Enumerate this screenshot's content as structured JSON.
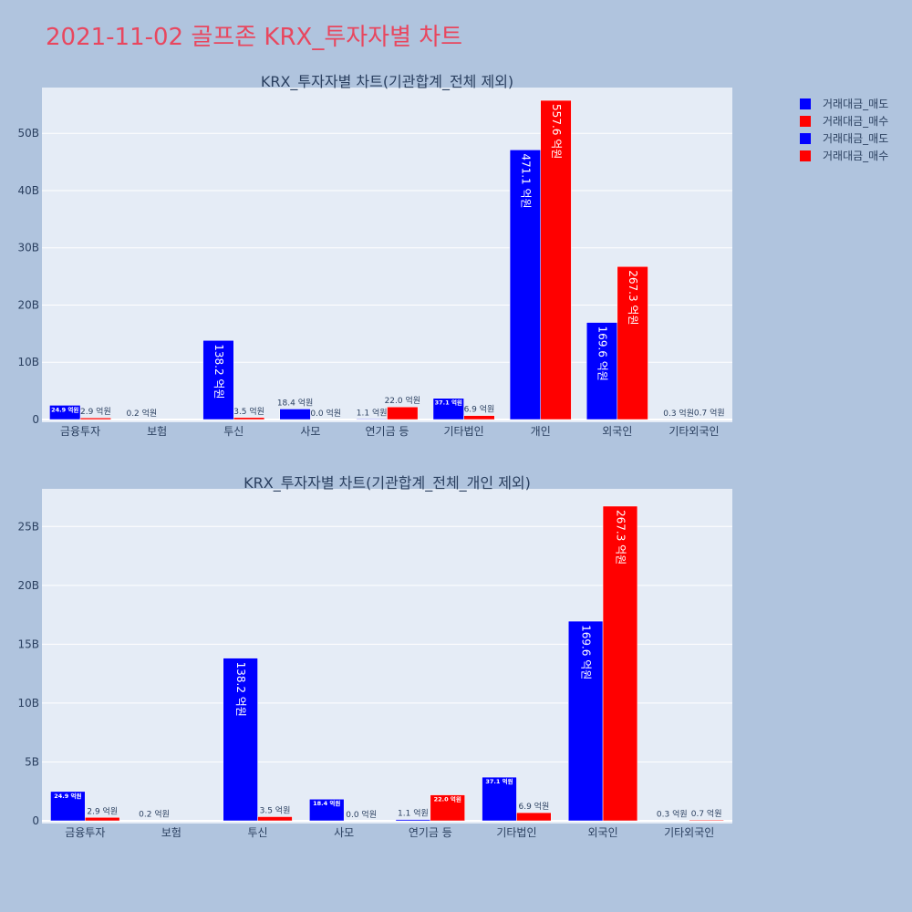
{
  "title": "2021-11-02 골프존 KRX_투자자별 차트",
  "colors": {
    "title": "#e8475f",
    "page_bg": "#b0c4de",
    "plot_bg": "#e5ecf6",
    "text": "#2a3f5f",
    "sell": "#0000ff",
    "buy": "#ff0000"
  },
  "legend": [
    {
      "name": "거래대금_매도",
      "color": "#0000ff"
    },
    {
      "name": "거래대금_매수",
      "color": "#ff0000"
    },
    {
      "name": "거래대금_매도",
      "color": "#0000ff"
    },
    {
      "name": "거래대금_매수",
      "color": "#ff0000"
    }
  ],
  "chart_data": [
    {
      "type": "bar",
      "title": "KRX_투자자별 차트(기관합계_전체 제외)",
      "categories": [
        "금융투자",
        "보험",
        "투신",
        "사모",
        "연기금 등",
        "기타법인",
        "개인",
        "외국인",
        "기타외국인"
      ],
      "ylim": [
        0,
        58
      ],
      "yticks": [
        0,
        10,
        20,
        30,
        40,
        50
      ],
      "ytick_labels": [
        "0",
        "10B",
        "20B",
        "30B",
        "40B",
        "50B"
      ],
      "grid": true,
      "series": [
        {
          "name": "거래대금_매도",
          "color": "#0000ff",
          "values": [
            2.49,
            0.02,
            13.82,
            1.84,
            0.11,
            3.71,
            47.11,
            16.96,
            0.03
          ],
          "labels": [
            "24.9 억원",
            "0.2 억원",
            "138.2 억원",
            "18.4 억원",
            "1.1 억원",
            "37.1 억원",
            "471.1 억원",
            "169.6 억원",
            "0.3 억원"
          ]
        },
        {
          "name": "거래대금_매수",
          "color": "#ff0000",
          "values": [
            0.29,
            0.0,
            0.35,
            0.0,
            2.2,
            0.69,
            55.76,
            26.73,
            0.07
          ],
          "labels": [
            "2.9 억원",
            "",
            "3.5 억원",
            "0.0 억원",
            "22.0 억원",
            "6.9 억원",
            "557.6 억원",
            "267.3 억원",
            "0.7 억원"
          ]
        }
      ]
    },
    {
      "type": "bar",
      "title": "KRX_투자자별 차트(기관합계_전체_개인 제외)",
      "categories": [
        "금융투자",
        "보험",
        "투신",
        "사모",
        "연기금 등",
        "기타법인",
        "외국인",
        "기타외국인"
      ],
      "ylim": [
        0,
        28.2
      ],
      "yticks": [
        0,
        5,
        10,
        15,
        20,
        25
      ],
      "ytick_labels": [
        "0",
        "5B",
        "10B",
        "15B",
        "20B",
        "25B"
      ],
      "grid": true,
      "series": [
        {
          "name": "거래대금_매도",
          "color": "#0000ff",
          "values": [
            2.49,
            0.02,
            13.82,
            1.84,
            0.11,
            3.71,
            16.96,
            0.03
          ],
          "labels": [
            "24.9 억원",
            "0.2 억원",
            "138.2 억원",
            "18.4 억원",
            "1.1 억원",
            "37.1 억원",
            "169.6 억원",
            "0.3 억원"
          ]
        },
        {
          "name": "거래대금_매수",
          "color": "#ff0000",
          "values": [
            0.29,
            0.0,
            0.35,
            0.0,
            2.2,
            0.69,
            26.73,
            0.07
          ],
          "labels": [
            "2.9 억원",
            "",
            "3.5 억원",
            "0.0 억원",
            "22.0 억원",
            "6.9 억원",
            "267.3 억원",
            "0.7 억원"
          ]
        }
      ]
    }
  ]
}
